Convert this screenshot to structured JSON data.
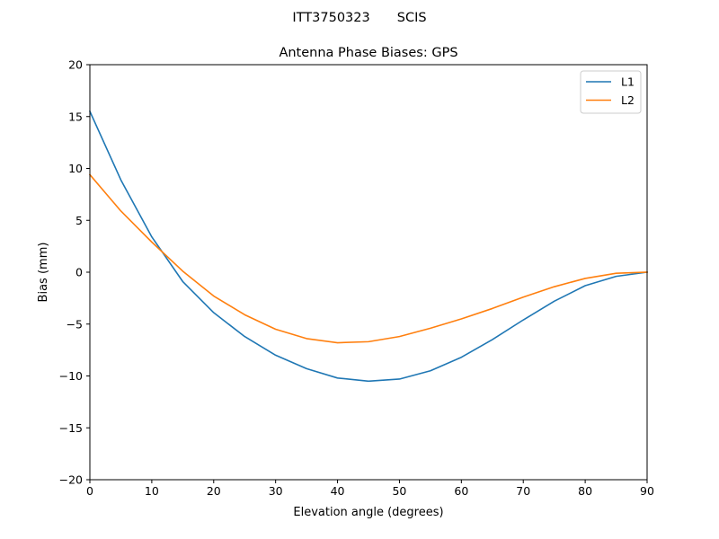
{
  "header": {
    "station": "ITT3750323",
    "antenna": "SCIS"
  },
  "chart_data": {
    "type": "line",
    "title": "Antenna Phase Biases: GPS",
    "xlabel": "Elevation angle (degrees)",
    "ylabel": "Bias (mm)",
    "xlim": [
      0,
      90
    ],
    "ylim": [
      -20,
      20
    ],
    "xticks": [
      0,
      10,
      20,
      30,
      40,
      50,
      60,
      70,
      80,
      90
    ],
    "yticks": [
      -20,
      -15,
      -10,
      -5,
      0,
      5,
      10,
      15,
      20
    ],
    "ytick_labels": [
      "−20",
      "−15",
      "−10",
      "−5",
      "0",
      "5",
      "10",
      "15",
      "20"
    ],
    "grid": false,
    "legend": "top-right",
    "x": [
      0,
      5,
      10,
      15,
      20,
      25,
      30,
      35,
      40,
      45,
      50,
      55,
      60,
      65,
      70,
      75,
      80,
      85,
      90
    ],
    "series": [
      {
        "name": "L1",
        "color": "#1f77b4",
        "values": [
          15.5,
          8.9,
          3.4,
          -0.9,
          -3.9,
          -6.2,
          -8.0,
          -9.3,
          -10.2,
          -10.5,
          -10.3,
          -9.5,
          -8.2,
          -6.5,
          -4.6,
          -2.8,
          -1.3,
          -0.4,
          0.0
        ]
      },
      {
        "name": "L2",
        "color": "#ff7f0e",
        "values": [
          9.4,
          5.9,
          2.9,
          0.1,
          -2.3,
          -4.1,
          -5.5,
          -6.4,
          -6.8,
          -6.7,
          -6.2,
          -5.4,
          -4.5,
          -3.5,
          -2.4,
          -1.4,
          -0.6,
          -0.1,
          0.0
        ]
      }
    ]
  }
}
